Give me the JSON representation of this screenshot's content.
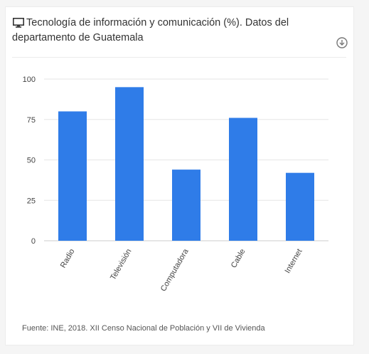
{
  "header": {
    "title": "Tecnología de información y comunicación (%). Datos del departamento de Guatemala",
    "title_icon": "monitor-icon",
    "download_icon": "download-icon"
  },
  "chart_data": {
    "type": "bar",
    "categories": [
      "Radio",
      "Televisión",
      "Computadora",
      "Cable",
      "Internet"
    ],
    "values": [
      80,
      95,
      44,
      76,
      42
    ],
    "ylim": [
      0,
      100
    ],
    "yticks": [
      "0",
      "25",
      "50",
      "75",
      "100"
    ],
    "grid": true,
    "legend": "none",
    "bar_color": "#2f7ce8"
  },
  "footer": {
    "source": "Fuente: INE, 2018. XII Censo Nacional de Población y VII de Vivienda"
  },
  "colors": {
    "bar": "#2f7ce8",
    "grid": "#e6e6e6",
    "text": "#333333"
  }
}
